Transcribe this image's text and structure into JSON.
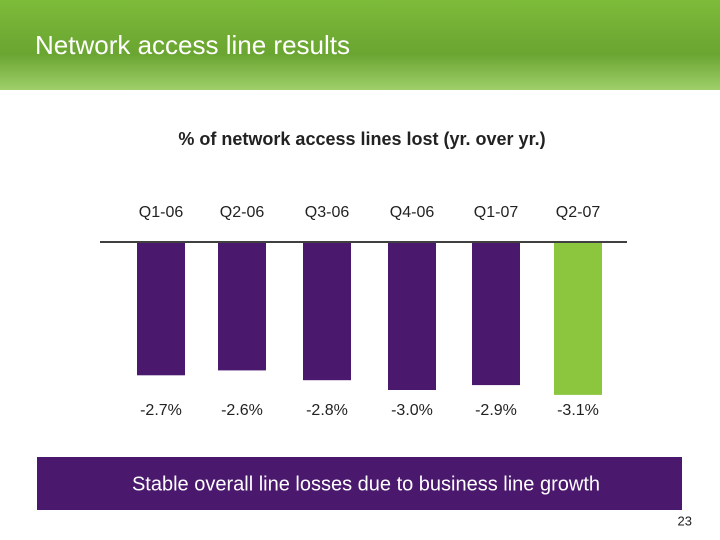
{
  "header": {
    "title": "Network access line results"
  },
  "chart_data": {
    "type": "bar",
    "title": "% of network access lines lost (yr. over yr.)",
    "categories": [
      "Q1-06",
      "Q2-06",
      "Q3-06",
      "Q4-06",
      "Q1-07",
      "Q2-07"
    ],
    "values": [
      -2.7,
      -2.6,
      -2.8,
      -3.0,
      -2.9,
      -3.1
    ],
    "value_labels": [
      "-2.7%",
      "-2.6%",
      "-2.8%",
      "-3.0%",
      "-2.9%",
      "-3.1%"
    ],
    "colors": [
      "#4a186c",
      "#4a186c",
      "#4a186c",
      "#4a186c",
      "#4a186c",
      "#8cc63f"
    ]
  },
  "footer": {
    "message": "Stable overall line losses due to business line growth",
    "page_number": "23"
  }
}
